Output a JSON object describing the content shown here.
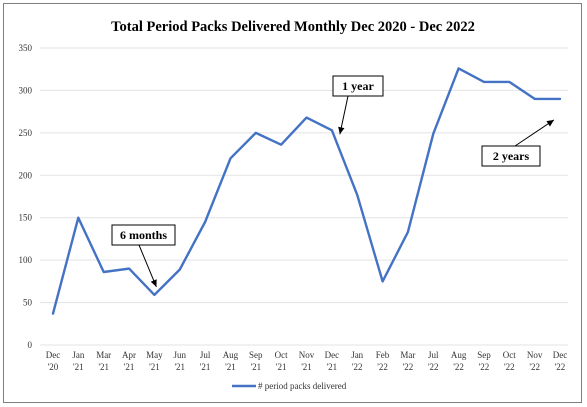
{
  "chart_data": {
    "type": "line",
    "title": "Total Period Packs Delivered Monthly Dec 2020  - Dec 2022",
    "xlabel": "",
    "ylabel": "",
    "ylim": [
      0,
      350
    ],
    "yticks": [
      0,
      50,
      100,
      150,
      200,
      250,
      300,
      350
    ],
    "grid": true,
    "legend_position": "bottom",
    "categories": [
      [
        "Dec",
        "'20"
      ],
      [
        "Jan",
        "'21"
      ],
      [
        "Mar",
        "'21"
      ],
      [
        "Apr",
        "'21"
      ],
      [
        "May",
        "'21"
      ],
      [
        "Jun",
        "'21"
      ],
      [
        "Jul",
        "'21"
      ],
      [
        "Aug",
        "'21"
      ],
      [
        "Sep",
        "'21"
      ],
      [
        "Oct",
        "'21"
      ],
      [
        "Nov",
        "'21"
      ],
      [
        "Dec",
        "'21"
      ],
      [
        "Jan",
        "'22"
      ],
      [
        "Feb",
        "'22"
      ],
      [
        "Mar",
        "'22"
      ],
      [
        "Jul",
        "'22"
      ],
      [
        "Aug",
        "'22"
      ],
      [
        "Sep",
        "'22"
      ],
      [
        "Oct",
        "'22"
      ],
      [
        "Nov",
        "'22"
      ],
      [
        "Dec",
        "'22"
      ]
    ],
    "series": [
      {
        "name": "# period packs delivered",
        "color": "#4472c4",
        "values": [
          37,
          150,
          86,
          90,
          59,
          89,
          145,
          220,
          250,
          236,
          268,
          253,
          177,
          75,
          133,
          249,
          326,
          310,
          310,
          290,
          290
        ]
      }
    ],
    "annotations": [
      {
        "text": "6 months",
        "category_index": 4,
        "value": 59
      },
      {
        "text": "1 year",
        "category_index": 11,
        "value": 253
      },
      {
        "text": "2 years",
        "category_index": 20,
        "value": 270
      }
    ]
  }
}
